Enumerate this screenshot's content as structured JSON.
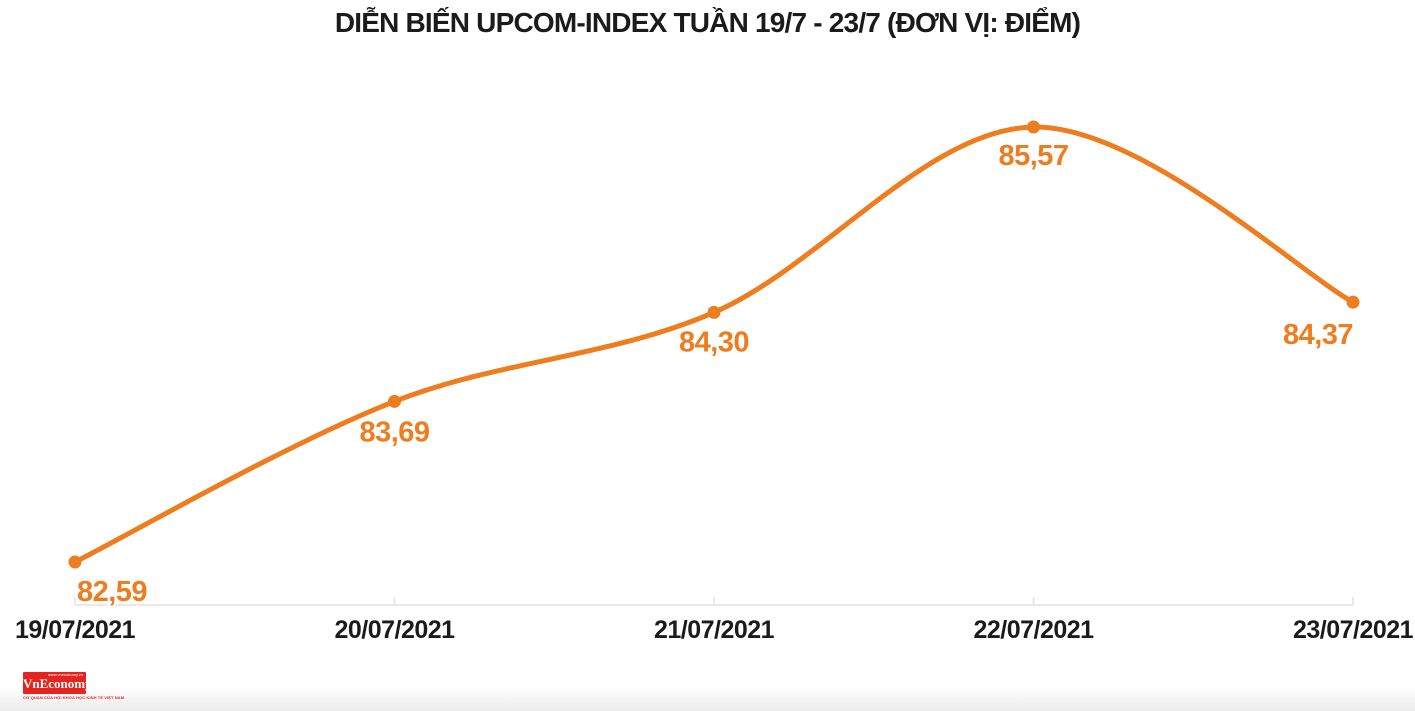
{
  "chart_data": {
    "type": "line",
    "title": "DIỄN BIẾN UPCOM-INDEX TUẦN 19/7 - 23/7 (ĐƠN VỊ: ĐIỂM)",
    "unit_note": "ĐƠN VỊ: ĐIỂM",
    "categories": [
      "19/07/2021",
      "20/07/2021",
      "21/07/2021",
      "22/07/2021",
      "23/07/2021"
    ],
    "series": [
      {
        "name": "UPCOM-INDEX",
        "values": [
          82.59,
          83.69,
          84.3,
          85.57,
          84.37
        ]
      }
    ],
    "point_labels": [
      "82,59",
      "83,69",
      "84,30",
      "85,57",
      "84,37"
    ],
    "smooth": true,
    "grid": false,
    "legend_position": "none",
    "xlabel": "",
    "ylabel": "",
    "ylim": [
      82.3,
      86.05
    ],
    "colors": {
      "line": "#ED7D1F",
      "marker": "#ED7D1F",
      "point_label": "#ED7D1F",
      "axis_line": "#e3e3e3",
      "axis_text": "#1b1b1b",
      "title_text": "#1b1b1b"
    }
  },
  "footer": {
    "logo": {
      "wordmark": "VnEconomy",
      "tagline_top": "www.vneconomy.vn",
      "tagline_bottom": "CƠ QUAN CỦA HỘI KHOA HỌC KINH TẾ VIỆT NAM",
      "background": "#e5231f",
      "text_color": "#e5231f"
    }
  }
}
